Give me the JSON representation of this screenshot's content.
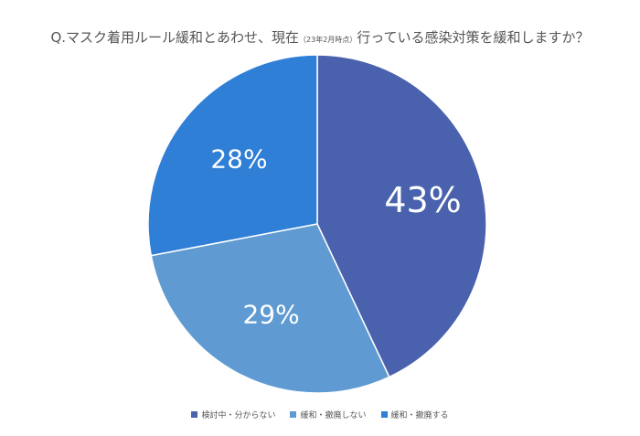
{
  "chart_data": {
    "type": "pie",
    "title": {
      "main_prefix": "Q.マスク着用ルール緩和とあわせ、現在",
      "sub": "（23年2月時点）",
      "main_suffix": "行っている感染対策を緩和しますか？"
    },
    "slices": [
      {
        "name": "検討中・分からない",
        "value": 43,
        "label": "43%",
        "color": "#4a62ad"
      },
      {
        "name": "緩和・撤廃しない",
        "value": 29,
        "label": "29%",
        "color": "#5f9bd2"
      },
      {
        "name": "緩和・撤廃する",
        "value": 28,
        "label": "28%",
        "color": "#2f7fd6"
      }
    ],
    "start": "12 o'clock",
    "direction": "clockwise",
    "legend_position": "bottom"
  }
}
